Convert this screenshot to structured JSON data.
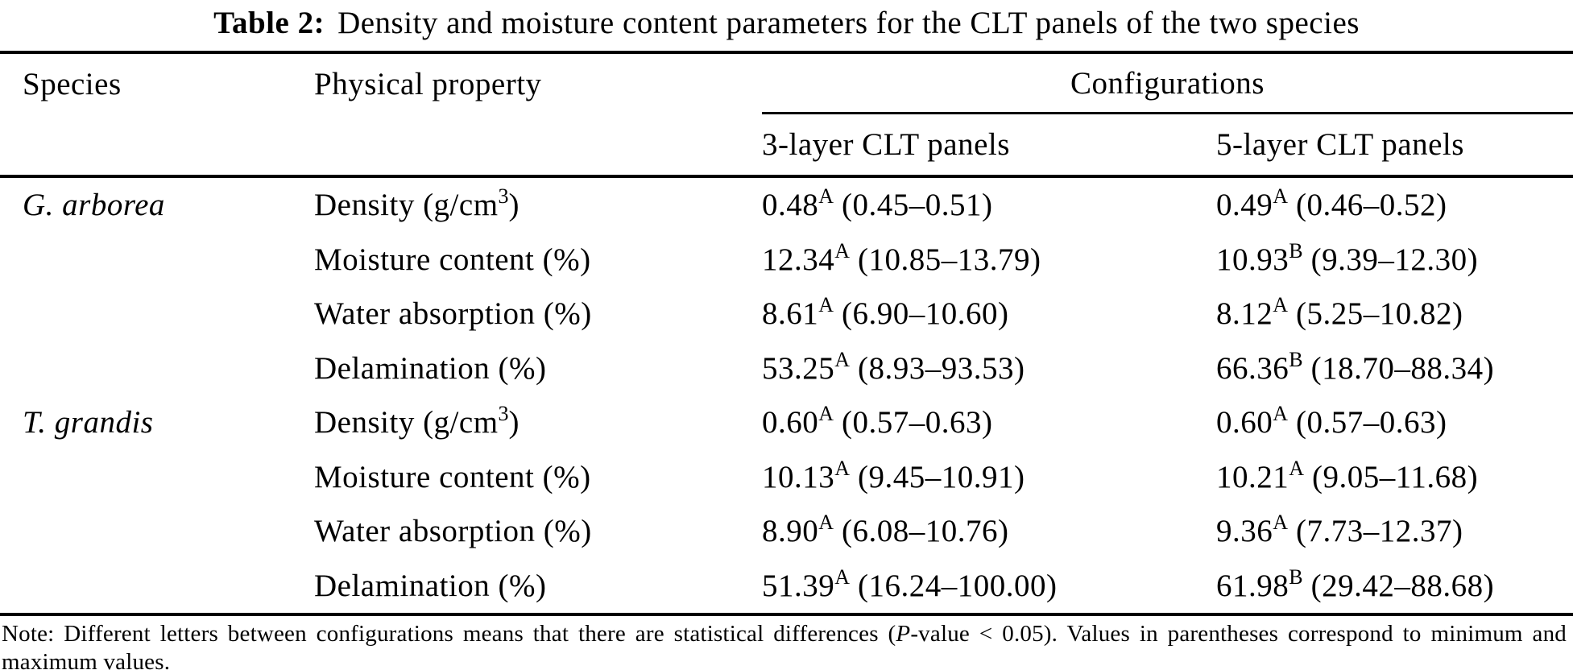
{
  "title": {
    "prefix": "Table 2:",
    "text": "Density and moisture content parameters for the CLT panels of the two species"
  },
  "headers": {
    "species": "Species",
    "property": "Physical property",
    "config_group": "Configurations",
    "col3": "3-layer CLT panels",
    "col5": "5-layer CLT panels"
  },
  "rows": [
    {
      "species": "G. arborea",
      "prop_pre": "Density (g/cm",
      "prop_sup": "3",
      "prop_post": ")",
      "v3": "0.48",
      "v3_sup": "A",
      "v3_range": "(0.45–0.51)",
      "v5": "0.49",
      "v5_sup": "A",
      "v5_range": "(0.46–0.52)"
    },
    {
      "species": "",
      "prop_pre": "Moisture content (%)",
      "prop_sup": "",
      "prop_post": "",
      "v3": "12.34",
      "v3_sup": "A",
      "v3_range": "(10.85–13.79)",
      "v5": "10.93",
      "v5_sup": "B",
      "v5_range": "(9.39–12.30)"
    },
    {
      "species": "",
      "prop_pre": "Water absorption (%)",
      "prop_sup": "",
      "prop_post": "",
      "v3": "8.61",
      "v3_sup": "A",
      "v3_range": "(6.90–10.60)",
      "v5": "8.12",
      "v5_sup": "A",
      "v5_range": "(5.25–10.82)"
    },
    {
      "species": "",
      "prop_pre": "Delamination (%)",
      "prop_sup": "",
      "prop_post": "",
      "v3": "53.25",
      "v3_sup": "A",
      "v3_range": "(8.93–93.53)",
      "v5": "66.36",
      "v5_sup": "B",
      "v5_range": "(18.70–88.34)"
    },
    {
      "species": "T. grandis",
      "prop_pre": "Density (g/cm",
      "prop_sup": "3",
      "prop_post": ")",
      "v3": "0.60",
      "v3_sup": "A",
      "v3_range": "(0.57–0.63)",
      "v5": "0.60",
      "v5_sup": "A",
      "v5_range": "(0.57–0.63)"
    },
    {
      "species": "",
      "prop_pre": "Moisture content (%)",
      "prop_sup": "",
      "prop_post": "",
      "v3": "10.13",
      "v3_sup": "A",
      "v3_range": "(9.45–10.91)",
      "v5": "10.21",
      "v5_sup": "A",
      "v5_range": "(9.05–11.68)"
    },
    {
      "species": "",
      "prop_pre": "Water absorption (%)",
      "prop_sup": "",
      "prop_post": "",
      "v3": "8.90",
      "v3_sup": "A",
      "v3_range": "(6.08–10.76)",
      "v5": "9.36",
      "v5_sup": "A",
      "v5_range": "(7.73–12.37)"
    },
    {
      "species": "",
      "prop_pre": "Delamination (%)",
      "prop_sup": "",
      "prop_post": "",
      "v3": "51.39",
      "v3_sup": "A",
      "v3_range": "(16.24–100.00)",
      "v5": "61.98",
      "v5_sup": "B",
      "v5_range": "(29.42–88.68)"
    }
  ],
  "note": {
    "pre": "Note: Different letters between configurations means that there are statistical differences (",
    "italic": "P",
    "post": "-value < 0.05). Values in parentheses correspond to minimum and maximum values."
  },
  "colors": {
    "text": "#000000",
    "background": "#ffffff",
    "rule": "#000000"
  }
}
